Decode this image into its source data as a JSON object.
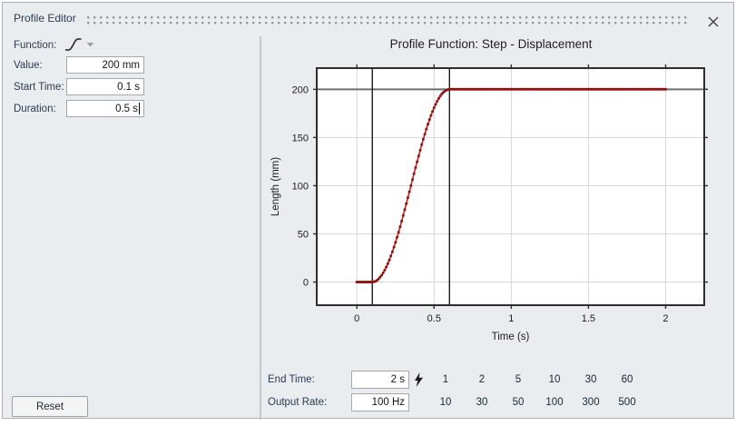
{
  "window": {
    "title": "Profile Editor"
  },
  "editor": {
    "function_label": "Function:",
    "fields": [
      {
        "label": "Value:",
        "value": "200 mm"
      },
      {
        "label": "Start Time:",
        "value": "0.1 s"
      },
      {
        "label": "Duration:",
        "value": "0.5 s"
      }
    ],
    "reset_label": "Reset"
  },
  "footer": {
    "end_time": {
      "label": "End Time:",
      "value": "2 s",
      "presets": [
        "1",
        "2",
        "5",
        "10",
        "30",
        "60"
      ]
    },
    "output_rate": {
      "label": "Output Rate:",
      "value": "100 Hz",
      "presets": [
        "10",
        "30",
        "50",
        "100",
        "300",
        "500"
      ]
    }
  },
  "chart_data": {
    "type": "line",
    "title": "Profile Function: Step - Displacement",
    "xlabel": "Time (s)",
    "ylabel": "Length (mm)",
    "xlim": [
      -0.26,
      2.25
    ],
    "ylim": [
      -24,
      222
    ],
    "xticks": [
      0,
      0.5,
      1,
      1.5,
      2
    ],
    "yticks": [
      0,
      50,
      100,
      150,
      200
    ],
    "grid": true,
    "legend": "none",
    "series": [
      {
        "name": "Step displacement profile",
        "shape": "half-cosine smooth step: y=0 before start, y=value/2*(1-cos(pi*(t-start)/duration)) during ramp, y=value after",
        "value_mm": 200,
        "start_time_s": 0.1,
        "duration_s": 0.5,
        "end_time_s": 2,
        "output_rate_hz": 100,
        "line_color": "#c8221f",
        "point_color": "#8c1311"
      }
    ],
    "markers": {
      "vlines": [
        0.1,
        0.6
      ],
      "hlines": [
        200
      ]
    },
    "colors": {
      "plot_bg": "#ffffff",
      "grid": "#d6d6d6",
      "axis_border": "#2e2e2e",
      "marker_vline": "#1a1a1a",
      "marker_hline": "#6f6f6f",
      "tick_text": "#1c1c1c"
    }
  }
}
